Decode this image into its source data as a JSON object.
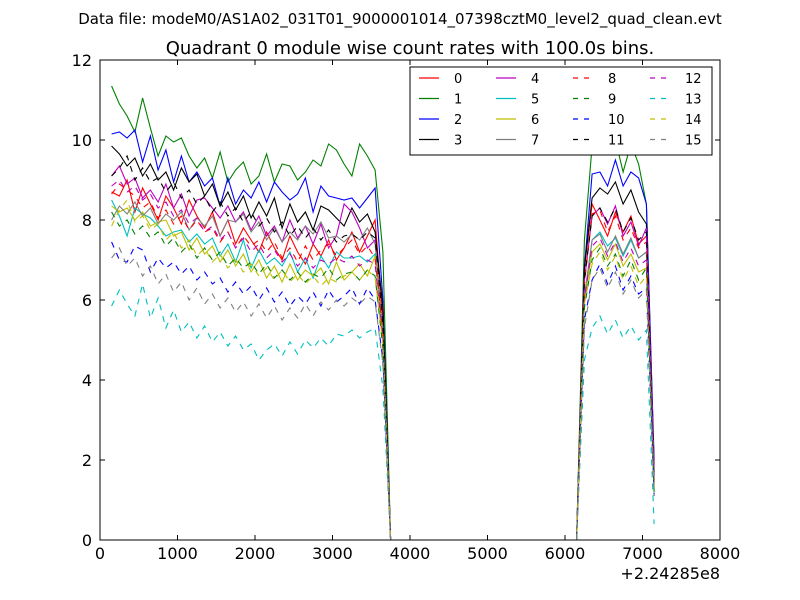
{
  "chart_data": {
    "type": "line",
    "suptitle": "Data file: modeM0/AS1A02_031T01_9000001014_07398cztM0_level2_quad_clean.evt",
    "title": "Quadrant 0 module wise count rates with 100.0s bins.",
    "xlabel": "",
    "ylabel": "",
    "x_offset_label": "+2.24285e8",
    "xlim": [
      0,
      8000
    ],
    "ylim": [
      0,
      12
    ],
    "x_ticks": [
      0,
      1000,
      2000,
      3000,
      4000,
      5000,
      6000,
      7000,
      8000
    ],
    "y_ticks": [
      0,
      2,
      4,
      6,
      8,
      10,
      12
    ],
    "x_tick_labels": [
      "0",
      "1000",
      "2000",
      "3000",
      "4000",
      "5000",
      "6000",
      "7000",
      "8000"
    ],
    "y_tick_labels": [
      "0",
      "2",
      "4",
      "6",
      "8",
      "10",
      "12"
    ],
    "legend_position": "top-right",
    "legend_columns": 4,
    "grid": false,
    "x": [
      150,
      250,
      350,
      450,
      550,
      650,
      750,
      850,
      950,
      1050,
      1150,
      1250,
      1350,
      1450,
      1550,
      1650,
      1750,
      1850,
      1950,
      2050,
      2150,
      2250,
      2350,
      2450,
      2550,
      2650,
      2750,
      2850,
      2950,
      3050,
      3150,
      3250,
      3350,
      3450,
      3550,
      3650,
      3750,
      3850,
      6150,
      6250,
      6350,
      6450,
      6550,
      6650,
      6750,
      6850,
      6950,
      7050,
      7150
    ],
    "series": [
      {
        "name": "0",
        "color": "#ff0000",
        "dash": "solid",
        "values": [
          8.7,
          8.6,
          9.0,
          8.2,
          8.8,
          8.4,
          8.0,
          8.6,
          8.3,
          7.9,
          8.5,
          8.1,
          7.8,
          8.2,
          7.6,
          8.0,
          7.4,
          7.8,
          7.5,
          7.2,
          7.7,
          7.3,
          7.0,
          7.6,
          7.2,
          6.9,
          7.4,
          7.1,
          7.5,
          7.0,
          7.3,
          7.7,
          7.2,
          7.6,
          8.0,
          5.5,
          0,
          0,
          0,
          6.8,
          8.4,
          8.0,
          7.6,
          8.2,
          7.7,
          8.1,
          7.4,
          7.6,
          1.5
        ]
      },
      {
        "name": "1",
        "color": "#008000",
        "dash": "solid",
        "values": [
          11.35,
          10.9,
          10.6,
          10.2,
          11.05,
          10.3,
          9.6,
          10.1,
          9.95,
          10.05,
          9.6,
          9.3,
          9.55,
          9.05,
          9.7,
          8.95,
          9.25,
          9.45,
          8.9,
          9.1,
          9.65,
          8.95,
          9.4,
          9.35,
          9.0,
          9.2,
          9.5,
          9.35,
          9.9,
          9.75,
          9.4,
          9.1,
          9.9,
          9.6,
          9.25,
          7.2,
          0,
          0,
          0,
          7.5,
          9.85,
          10.0,
          10.4,
          10.0,
          9.2,
          9.9,
          9.4,
          8.4,
          1.9
        ]
      },
      {
        "name": "2",
        "color": "#0000ff",
        "dash": "solid",
        "values": [
          10.15,
          10.2,
          10.05,
          10.25,
          9.45,
          10.1,
          9.25,
          9.75,
          8.95,
          9.6,
          8.95,
          9.2,
          8.85,
          9.05,
          8.35,
          9.05,
          8.4,
          8.75,
          8.55,
          8.95,
          8.45,
          8.95,
          8.7,
          8.5,
          8.65,
          9.05,
          8.2,
          8.85,
          8.6,
          8.55,
          8.5,
          8.55,
          8.3,
          8.55,
          8.8,
          6.0,
          0,
          0,
          0,
          6.8,
          9.15,
          9.2,
          8.85,
          9.5,
          8.85,
          9.2,
          9.05,
          8.4,
          2.0
        ]
      },
      {
        "name": "3",
        "color": "#000000",
        "dash": "solid",
        "values": [
          9.85,
          9.65,
          9.35,
          9.55,
          9.1,
          9.4,
          9.0,
          9.2,
          8.75,
          9.3,
          8.95,
          9.15,
          8.6,
          8.9,
          8.35,
          8.7,
          8.25,
          8.6,
          8.05,
          8.45,
          8.1,
          8.55,
          7.8,
          8.4,
          7.95,
          8.2,
          7.75,
          8.35,
          8.25,
          8.05,
          7.85,
          8.3,
          7.95,
          8.15,
          7.7,
          5.8,
          0,
          0,
          0,
          6.8,
          8.55,
          8.8,
          8.65,
          8.95,
          8.4,
          8.75,
          8.2,
          7.9,
          1.7
        ]
      },
      {
        "name": "4",
        "color": "#bf00bf",
        "dash": "solid",
        "values": [
          9.1,
          9.35,
          8.9,
          9.05,
          8.55,
          8.75,
          8.45,
          8.9,
          8.3,
          8.65,
          8.1,
          8.5,
          8.55,
          8.3,
          8.05,
          8.35,
          7.95,
          8.2,
          7.75,
          8.1,
          7.6,
          7.85,
          7.45,
          8.0,
          7.55,
          7.85,
          7.4,
          7.9,
          7.3,
          7.6,
          8.4,
          8.2,
          7.8,
          7.3,
          7.5,
          5.2,
          0,
          0,
          0,
          6.5,
          8.1,
          8.3,
          7.9,
          8.35,
          7.6,
          7.95,
          7.35,
          7.8,
          1.8
        ]
      },
      {
        "name": "5",
        "color": "#00bfbf",
        "dash": "solid",
        "values": [
          8.5,
          8.1,
          7.6,
          8.3,
          8.15,
          8.05,
          7.85,
          7.6,
          7.7,
          7.75,
          7.45,
          7.65,
          7.4,
          7.55,
          7.1,
          7.4,
          6.95,
          7.5,
          6.8,
          7.25,
          6.9,
          7.05,
          6.85,
          7.2,
          6.7,
          7.05,
          6.55,
          7.1,
          6.8,
          7.2,
          7.05,
          7.05,
          7.1,
          6.95,
          7.15,
          5.0,
          0,
          0,
          0,
          6.0,
          7.5,
          7.7,
          7.35,
          7.55,
          7.1,
          7.5,
          7.05,
          7.2,
          1.4
        ]
      },
      {
        "name": "6",
        "color": "#bfbf00",
        "dash": "solid",
        "values": [
          8.35,
          8.2,
          8.3,
          8.0,
          8.2,
          7.85,
          7.95,
          8.0,
          7.6,
          7.7,
          7.25,
          7.55,
          7.15,
          7.35,
          6.95,
          7.25,
          6.85,
          7.15,
          6.7,
          7.0,
          6.55,
          6.85,
          6.45,
          6.9,
          6.5,
          6.75,
          6.6,
          6.8,
          6.4,
          6.95,
          6.5,
          6.7,
          6.9,
          6.6,
          7.1,
          5.0,
          0,
          0,
          0,
          6.0,
          7.2,
          7.4,
          7.0,
          7.4,
          6.85,
          7.15,
          6.7,
          6.8,
          1.3
        ]
      },
      {
        "name": "7",
        "color": "#808080",
        "dash": "solid",
        "values": [
          8.0,
          8.35,
          8.15,
          8.45,
          8.1,
          8.3,
          7.9,
          8.15,
          8.0,
          8.2,
          7.75,
          8.05,
          7.85,
          8.1,
          7.6,
          8.0,
          7.95,
          8.15,
          7.7,
          7.95,
          7.5,
          7.8,
          7.45,
          7.7,
          7.5,
          7.85,
          7.65,
          7.95,
          7.55,
          7.6,
          7.45,
          7.65,
          7.5,
          7.8,
          7.4,
          5.3,
          0,
          0,
          0,
          6.1,
          7.5,
          7.65,
          7.2,
          7.6,
          7.15,
          7.55,
          7.05,
          7.2,
          1.4
        ]
      },
      {
        "name": "8",
        "color": "#ff0000",
        "dash": "dashed",
        "values": [
          8.65,
          8.9,
          8.75,
          8.6,
          8.3,
          8.45,
          8.05,
          8.25,
          7.9,
          8.1,
          7.75,
          8.0,
          7.7,
          7.8,
          7.45,
          7.7,
          7.3,
          7.6,
          7.35,
          7.5,
          7.2,
          7.45,
          7.05,
          7.3,
          6.95,
          7.35,
          7.0,
          7.25,
          7.4,
          7.1,
          7.3,
          7.5,
          7.15,
          7.35,
          7.05,
          5.2,
          0,
          0,
          0,
          6.4,
          8.15,
          8.25,
          7.7,
          8.1,
          7.5,
          7.8,
          7.3,
          7.45,
          1.3
        ]
      },
      {
        "name": "9",
        "color": "#008000",
        "dash": "dashed",
        "values": [
          8.2,
          7.85,
          8.0,
          7.65,
          7.85,
          7.55,
          7.7,
          7.35,
          7.55,
          7.2,
          7.4,
          7.05,
          7.3,
          7.0,
          7.2,
          6.85,
          7.05,
          6.8,
          6.95,
          6.65,
          6.9,
          6.55,
          6.75,
          6.5,
          6.7,
          6.45,
          6.65,
          6.55,
          6.8,
          6.5,
          6.65,
          6.7,
          6.5,
          6.75,
          6.6,
          4.8,
          0,
          0,
          0,
          5.8,
          7.0,
          7.3,
          6.85,
          7.15,
          6.6,
          7.0,
          6.5,
          6.8,
          1.2
        ]
      },
      {
        "name": "10",
        "color": "#0000ff",
        "dash": "dashed",
        "values": [
          7.45,
          7.0,
          6.95,
          7.35,
          7.25,
          6.7,
          7.05,
          6.8,
          6.95,
          6.65,
          6.85,
          6.5,
          6.7,
          6.4,
          6.55,
          6.2,
          6.45,
          6.15,
          6.35,
          6.0,
          6.3,
          5.95,
          6.2,
          5.85,
          6.1,
          5.9,
          6.2,
          5.85,
          6.25,
          5.95,
          6.1,
          6.3,
          5.9,
          6.3,
          6.0,
          4.5,
          0,
          0,
          0,
          5.5,
          6.5,
          6.9,
          6.4,
          6.85,
          6.25,
          6.6,
          6.15,
          6.3,
          1.1
        ]
      },
      {
        "name": "11",
        "color": "#000000",
        "dash": "dashed",
        "values": [
          9.1,
          9.3,
          9.6,
          9.0,
          9.3,
          8.95,
          9.05,
          8.7,
          8.95,
          8.55,
          8.75,
          8.4,
          8.6,
          8.2,
          8.45,
          8.1,
          8.3,
          7.95,
          8.2,
          7.85,
          8.05,
          7.7,
          7.95,
          7.6,
          7.85,
          7.55,
          7.8,
          7.5,
          7.75,
          7.45,
          7.6,
          7.65,
          7.5,
          7.7,
          7.55,
          5.4,
          0,
          0,
          0,
          6.5,
          8.1,
          8.3,
          7.95,
          8.3,
          7.7,
          8.05,
          7.5,
          7.7,
          1.5
        ]
      },
      {
        "name": "12",
        "color": "#bf00bf",
        "dash": "dashed",
        "values": [
          8.85,
          9.0,
          8.7,
          8.85,
          8.5,
          8.65,
          8.3,
          8.45,
          8.1,
          8.25,
          7.9,
          8.05,
          7.7,
          7.85,
          7.5,
          7.7,
          7.3,
          7.55,
          7.2,
          7.4,
          7.05,
          7.25,
          6.95,
          7.15,
          6.85,
          7.05,
          6.8,
          7.0,
          6.9,
          7.05,
          6.95,
          7.1,
          6.85,
          7.0,
          6.9,
          5.0,
          0,
          0,
          0,
          6.0,
          7.35,
          7.55,
          7.1,
          7.45,
          6.95,
          7.3,
          6.85,
          7.0,
          1.3
        ]
      },
      {
        "name": "13",
        "color": "#00bfbf",
        "dash": "dashed",
        "values": [
          5.85,
          6.25,
          5.9,
          5.6,
          6.4,
          5.55,
          6.05,
          5.3,
          5.75,
          5.2,
          5.45,
          5.05,
          5.35,
          4.95,
          5.2,
          4.85,
          5.1,
          4.75,
          4.9,
          4.5,
          4.75,
          4.9,
          4.6,
          4.95,
          4.65,
          5.0,
          4.8,
          5.05,
          4.85,
          5.15,
          5.1,
          5.25,
          5.05,
          5.2,
          5.3,
          3.8,
          0,
          0,
          0,
          4.5,
          5.3,
          5.6,
          5.15,
          5.5,
          5.05,
          5.35,
          5.0,
          5.25,
          0.4
        ]
      },
      {
        "name": "14",
        "color": "#bfbf00",
        "dash": "dashed",
        "values": [
          7.85,
          8.25,
          8.5,
          7.95,
          8.1,
          7.75,
          7.9,
          7.5,
          7.7,
          7.3,
          7.5,
          7.1,
          7.3,
          6.95,
          7.15,
          6.8,
          7.0,
          6.7,
          6.9,
          6.6,
          6.8,
          6.5,
          6.75,
          6.45,
          6.65,
          6.4,
          6.6,
          6.35,
          6.55,
          6.45,
          6.6,
          6.7,
          6.5,
          6.75,
          6.55,
          4.9,
          0,
          0,
          0,
          5.9,
          6.9,
          7.2,
          6.75,
          7.1,
          6.5,
          6.85,
          6.35,
          6.6,
          1.2
        ]
      },
      {
        "name": "15",
        "color": "#808080",
        "dash": "dashed",
        "values": [
          7.05,
          7.3,
          6.85,
          7.05,
          6.6,
          6.85,
          6.4,
          6.65,
          6.2,
          6.45,
          6.0,
          6.3,
          5.9,
          6.15,
          5.8,
          6.05,
          5.7,
          5.95,
          5.6,
          5.9,
          5.55,
          5.85,
          5.5,
          5.8,
          5.55,
          5.9,
          5.6,
          5.95,
          5.75,
          6.0,
          5.85,
          6.05,
          5.9,
          6.1,
          5.95,
          4.4,
          0,
          0,
          0,
          5.3,
          6.5,
          6.8,
          6.3,
          6.7,
          6.15,
          6.5,
          6.05,
          6.25,
          1.1
        ]
      }
    ]
  }
}
